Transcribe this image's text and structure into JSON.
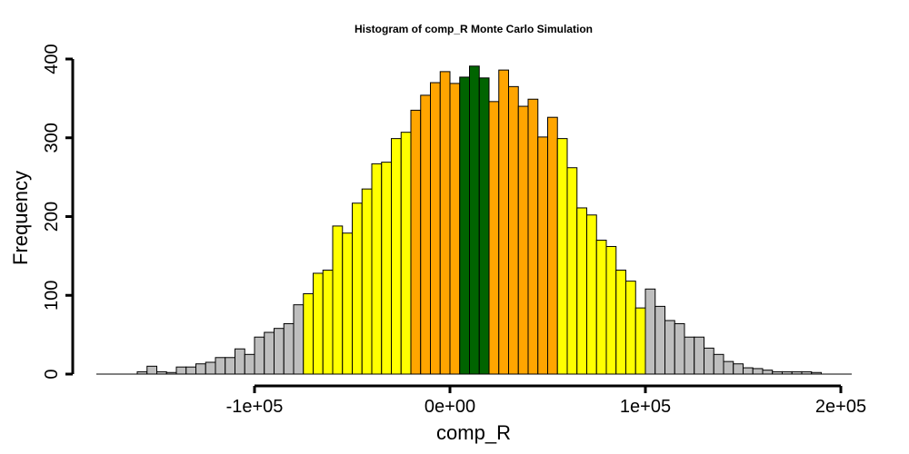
{
  "chart_data": {
    "type": "bar",
    "title": "Histogram of  comp_R  Monte Carlo Simulation",
    "xlabel": "comp_R",
    "ylabel": "Frequency",
    "bin_width": 5000,
    "bin_start": -160000,
    "xlim": [
      -180000,
      200000
    ],
    "ylim": [
      0,
      400
    ],
    "x_ticks": [
      {
        "value": -100000,
        "label": "-1e+05"
      },
      {
        "value": 0,
        "label": "0e+00"
      },
      {
        "value": 100000,
        "label": "1e+05"
      },
      {
        "value": 200000,
        "label": "2e+05"
      }
    ],
    "y_ticks": [
      {
        "value": 0,
        "label": "0"
      },
      {
        "value": 100,
        "label": "100"
      },
      {
        "value": 200,
        "label": "200"
      },
      {
        "value": 300,
        "label": "300"
      },
      {
        "value": 400,
        "label": "400"
      }
    ],
    "colors": {
      "gray": "#bebebe",
      "yellow": "#ffff00",
      "orange": "#ffa500",
      "green": "#006400"
    },
    "bins": [
      {
        "x0": -160000,
        "x1": -155000,
        "count": 3,
        "color": "gray"
      },
      {
        "x0": -155000,
        "x1": -150000,
        "count": 10,
        "color": "gray"
      },
      {
        "x0": -150000,
        "x1": -145000,
        "count": 3,
        "color": "gray"
      },
      {
        "x0": -145000,
        "x1": -140000,
        "count": 2,
        "color": "gray"
      },
      {
        "x0": -140000,
        "x1": -135000,
        "count": 9,
        "color": "gray"
      },
      {
        "x0": -135000,
        "x1": -130000,
        "count": 9,
        "color": "gray"
      },
      {
        "x0": -130000,
        "x1": -125000,
        "count": 13,
        "color": "gray"
      },
      {
        "x0": -125000,
        "x1": -120000,
        "count": 15,
        "color": "gray"
      },
      {
        "x0": -120000,
        "x1": -115000,
        "count": 21,
        "color": "gray"
      },
      {
        "x0": -115000,
        "x1": -110000,
        "count": 21,
        "color": "gray"
      },
      {
        "x0": -110000,
        "x1": -105000,
        "count": 32,
        "color": "gray"
      },
      {
        "x0": -105000,
        "x1": -100000,
        "count": 25,
        "color": "gray"
      },
      {
        "x0": -100000,
        "x1": -95000,
        "count": 47,
        "color": "gray"
      },
      {
        "x0": -95000,
        "x1": -90000,
        "count": 53,
        "color": "gray"
      },
      {
        "x0": -90000,
        "x1": -85000,
        "count": 58,
        "color": "gray"
      },
      {
        "x0": -85000,
        "x1": -80000,
        "count": 64,
        "color": "gray"
      },
      {
        "x0": -80000,
        "x1": -75000,
        "count": 88,
        "color": "gray"
      },
      {
        "x0": -75000,
        "x1": -70000,
        "count": 102,
        "color": "yellow"
      },
      {
        "x0": -70000,
        "x1": -65000,
        "count": 128,
        "color": "yellow"
      },
      {
        "x0": -65000,
        "x1": -60000,
        "count": 132,
        "color": "yellow"
      },
      {
        "x0": -60000,
        "x1": -55000,
        "count": 188,
        "color": "yellow"
      },
      {
        "x0": -55000,
        "x1": -50000,
        "count": 179,
        "color": "yellow"
      },
      {
        "x0": -50000,
        "x1": -45000,
        "count": 217,
        "color": "yellow"
      },
      {
        "x0": -45000,
        "x1": -40000,
        "count": 235,
        "color": "yellow"
      },
      {
        "x0": -40000,
        "x1": -35000,
        "count": 267,
        "color": "yellow"
      },
      {
        "x0": -35000,
        "x1": -30000,
        "count": 269,
        "color": "yellow"
      },
      {
        "x0": -30000,
        "x1": -25000,
        "count": 299,
        "color": "yellow"
      },
      {
        "x0": -25000,
        "x1": -20000,
        "count": 307,
        "color": "yellow"
      },
      {
        "x0": -20000,
        "x1": -15000,
        "count": 335,
        "color": "orange"
      },
      {
        "x0": -15000,
        "x1": -10000,
        "count": 354,
        "color": "orange"
      },
      {
        "x0": -10000,
        "x1": -5000,
        "count": 370,
        "color": "orange"
      },
      {
        "x0": -5000,
        "x1": 0,
        "count": 384,
        "color": "orange"
      },
      {
        "x0": 0,
        "x1": 5000,
        "count": 369,
        "color": "orange"
      },
      {
        "x0": 5000,
        "x1": 10000,
        "count": 377,
        "color": "green"
      },
      {
        "x0": 10000,
        "x1": 15000,
        "count": 391,
        "color": "green"
      },
      {
        "x0": 15000,
        "x1": 20000,
        "count": 376,
        "color": "green"
      },
      {
        "x0": 20000,
        "x1": 25000,
        "count": 346,
        "color": "orange"
      },
      {
        "x0": 25000,
        "x1": 30000,
        "count": 386,
        "color": "orange"
      },
      {
        "x0": 30000,
        "x1": 35000,
        "count": 365,
        "color": "orange"
      },
      {
        "x0": 35000,
        "x1": 40000,
        "count": 340,
        "color": "orange"
      },
      {
        "x0": 40000,
        "x1": 45000,
        "count": 349,
        "color": "orange"
      },
      {
        "x0": 45000,
        "x1": 50000,
        "count": 301,
        "color": "orange"
      },
      {
        "x0": 50000,
        "x1": 55000,
        "count": 326,
        "color": "orange"
      },
      {
        "x0": 55000,
        "x1": 60000,
        "count": 299,
        "color": "yellow"
      },
      {
        "x0": 60000,
        "x1": 65000,
        "count": 262,
        "color": "yellow"
      },
      {
        "x0": 65000,
        "x1": 70000,
        "count": 211,
        "color": "yellow"
      },
      {
        "x0": 70000,
        "x1": 75000,
        "count": 202,
        "color": "yellow"
      },
      {
        "x0": 75000,
        "x1": 80000,
        "count": 170,
        "color": "yellow"
      },
      {
        "x0": 80000,
        "x1": 85000,
        "count": 162,
        "color": "yellow"
      },
      {
        "x0": 85000,
        "x1": 90000,
        "count": 132,
        "color": "yellow"
      },
      {
        "x0": 90000,
        "x1": 95000,
        "count": 118,
        "color": "yellow"
      },
      {
        "x0": 95000,
        "x1": 100000,
        "count": 84,
        "color": "yellow"
      },
      {
        "x0": 100000,
        "x1": 105000,
        "count": 108,
        "color": "gray"
      },
      {
        "x0": 105000,
        "x1": 110000,
        "count": 86,
        "color": "gray"
      },
      {
        "x0": 110000,
        "x1": 115000,
        "count": 68,
        "color": "gray"
      },
      {
        "x0": 115000,
        "x1": 120000,
        "count": 64,
        "color": "gray"
      },
      {
        "x0": 120000,
        "x1": 125000,
        "count": 47,
        "color": "gray"
      },
      {
        "x0": 125000,
        "x1": 130000,
        "count": 47,
        "color": "gray"
      },
      {
        "x0": 130000,
        "x1": 135000,
        "count": 33,
        "color": "gray"
      },
      {
        "x0": 135000,
        "x1": 140000,
        "count": 25,
        "color": "gray"
      },
      {
        "x0": 140000,
        "x1": 145000,
        "count": 16,
        "color": "gray"
      },
      {
        "x0": 145000,
        "x1": 150000,
        "count": 13,
        "color": "gray"
      },
      {
        "x0": 150000,
        "x1": 155000,
        "count": 8,
        "color": "gray"
      },
      {
        "x0": 155000,
        "x1": 160000,
        "count": 7,
        "color": "gray"
      },
      {
        "x0": 160000,
        "x1": 165000,
        "count": 5,
        "color": "gray"
      },
      {
        "x0": 165000,
        "x1": 170000,
        "count": 3,
        "color": "gray"
      },
      {
        "x0": 170000,
        "x1": 175000,
        "count": 3,
        "color": "gray"
      },
      {
        "x0": 175000,
        "x1": 180000,
        "count": 3,
        "color": "gray"
      },
      {
        "x0": 180000,
        "x1": 185000,
        "count": 3,
        "color": "gray"
      },
      {
        "x0": 185000,
        "x1": 190000,
        "count": 2,
        "color": "gray"
      }
    ]
  }
}
